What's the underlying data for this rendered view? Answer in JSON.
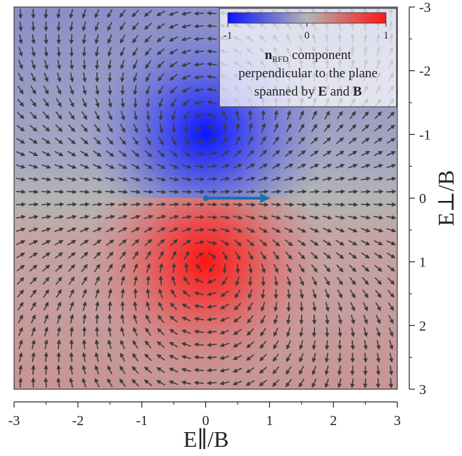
{
  "chart_data": {
    "type": "heatmap",
    "subtype": "vector field over color map",
    "xlabel": "E∥/B",
    "ylabel": "E⊥/B",
    "xlim": [
      -3,
      3
    ],
    "ylim": [
      -3,
      3
    ],
    "y_axis_side": "right",
    "y_axis_inverted": true,
    "x_ticks": [
      "-3",
      "-2",
      "-1",
      "0",
      "1",
      "2",
      "3"
    ],
    "y_ticks": [
      "-3",
      "-2",
      "-1",
      "0",
      "1",
      "2",
      "3"
    ],
    "x_tick_values": [
      -3,
      -2,
      -1,
      0,
      1,
      2,
      3
    ],
    "y_tick_values": [
      -3,
      -2,
      -1,
      0,
      1,
      2,
      3
    ],
    "grid": false,
    "colorbar": {
      "range": [
        -1,
        1
      ],
      "tick_labels": [
        "-1",
        "0",
        "1"
      ],
      "tick_values": [
        -1,
        0,
        1
      ],
      "colors": [
        "#0a14ff",
        "#b4b4b4",
        "#ff1414"
      ],
      "placement": "top-right",
      "caption_bold": "n",
      "caption_sub": "RFD",
      "caption_rest": " component",
      "caption_line2": "perpendicular to the plane",
      "caption_line3_a": "spanned by ",
      "caption_line3_E": "E",
      "caption_line3_and": " and ",
      "caption_line3_B": "B"
    },
    "field": {
      "color_minimum": {
        "x": 0,
        "y": -1,
        "value": -1
      },
      "color_maximum": {
        "x": 0,
        "y": 1,
        "value": 1
      },
      "zero_line": {
        "y": 0
      },
      "arrow_color": "#3c3c3c",
      "grid_cells": 30
    },
    "highlight_arrow": {
      "x_start": 0,
      "x_end": 1,
      "y": 0,
      "color": "#1f6fb0"
    }
  }
}
